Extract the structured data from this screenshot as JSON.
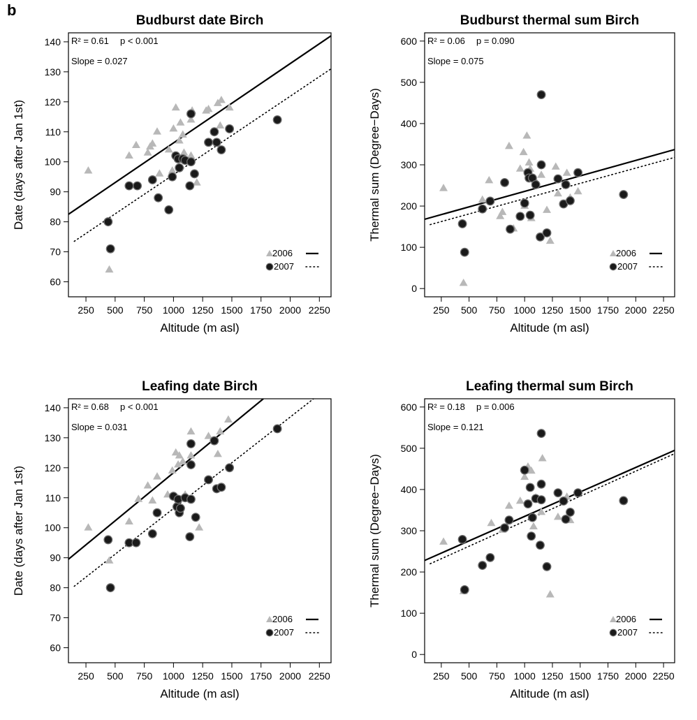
{
  "panel_label": "b",
  "colors": {
    "year2006": "#b8b8b8",
    "year2007": "#1a1a1a",
    "line": "#000000"
  },
  "chart_data": [
    {
      "type": "scatter",
      "title": "Budburst date Birch",
      "xlabel": "Altitude (m asl)",
      "ylabel": "Date (days after Jan 1st)",
      "xlim": [
        100,
        2350
      ],
      "ylim": [
        55,
        143
      ],
      "xticks": [
        250,
        500,
        750,
        1000,
        1250,
        1500,
        1750,
        2000,
        2250
      ],
      "yticks": [
        60,
        70,
        80,
        90,
        100,
        110,
        120,
        130,
        140
      ],
      "stats": {
        "r2": "R² = 0.61",
        "p": "p < 0.001",
        "slope": "Slope = 0.027"
      },
      "legend": {
        "position": "bottom-right",
        "entries": [
          "2006",
          "2007"
        ]
      },
      "series": [
        {
          "name": "2006",
          "marker": "triangle",
          "line": "solid",
          "fit": [
            [
              100,
              82.5
            ],
            [
              2350,
              142
            ]
          ],
          "points": [
            [
              270,
              97
            ],
            [
              450,
              64
            ],
            [
              620,
              102
            ],
            [
              680,
              105.5
            ],
            [
              780,
              103
            ],
            [
              800,
              105
            ],
            [
              820,
              106
            ],
            [
              860,
              110
            ],
            [
              880,
              96
            ],
            [
              960,
              104
            ],
            [
              990,
              97
            ],
            [
              1000,
              111
            ],
            [
              1020,
              118
            ],
            [
              1040,
              101
            ],
            [
              1050,
              107
            ],
            [
              1060,
              113
            ],
            [
              1080,
              109
            ],
            [
              1090,
              103
            ],
            [
              1100,
              101
            ],
            [
              1150,
              102
            ],
            [
              1150,
              114
            ],
            [
              1160,
              117
            ],
            [
              1200,
              93
            ],
            [
              1280,
              117
            ],
            [
              1300,
              117.5
            ],
            [
              1380,
              119.5
            ],
            [
              1400,
              112
            ],
            [
              1410,
              120.5
            ],
            [
              1480,
              118
            ]
          ]
        },
        {
          "name": "2007",
          "marker": "circle",
          "line": "dotted",
          "fit": [
            [
              150,
              73.5
            ],
            [
              2350,
              131
            ]
          ],
          "points": [
            [
              440,
              80
            ],
            [
              460,
              71
            ],
            [
              620,
              92
            ],
            [
              690,
              92
            ],
            [
              820,
              94
            ],
            [
              870,
              88
            ],
            [
              960,
              84
            ],
            [
              990,
              95
            ],
            [
              1020,
              102
            ],
            [
              1040,
              101
            ],
            [
              1050,
              98
            ],
            [
              1080,
              101
            ],
            [
              1100,
              100.5
            ],
            [
              1140,
              92
            ],
            [
              1150,
              100
            ],
            [
              1150,
              116
            ],
            [
              1180,
              96
            ],
            [
              1300,
              106.5
            ],
            [
              1350,
              110
            ],
            [
              1370,
              106.5
            ],
            [
              1410,
              104
            ],
            [
              1480,
              111
            ],
            [
              1890,
              114
            ]
          ]
        }
      ]
    },
    {
      "type": "scatter",
      "title": "Budburst thermal sum Birch",
      "xlabel": "Altitude (m asl)",
      "ylabel": "Thermal sum (Degree−Days)",
      "xlim": [
        100,
        2350
      ],
      "ylim": [
        -20,
        620
      ],
      "xticks": [
        250,
        500,
        750,
        1000,
        1250,
        1500,
        1750,
        2000,
        2250
      ],
      "yticks": [
        0,
        100,
        200,
        300,
        400,
        500,
        600
      ],
      "stats": {
        "r2": "R² = 0.06",
        "p": "p = 0.090",
        "slope": "Slope = 0.075"
      },
      "legend": {
        "position": "bottom-right",
        "entries": [
          "2006",
          "2007"
        ]
      },
      "series": [
        {
          "name": "2006",
          "marker": "triangle",
          "line": "solid",
          "fit": [
            [
              100,
              168
            ],
            [
              2350,
              337
            ]
          ],
          "points": [
            [
              270,
              243
            ],
            [
              450,
              13
            ],
            [
              620,
              215
            ],
            [
              680,
              262
            ],
            [
              780,
              175
            ],
            [
              800,
              185
            ],
            [
              860,
              345
            ],
            [
              900,
              145
            ],
            [
              960,
              290
            ],
            [
              990,
              330
            ],
            [
              1000,
              200
            ],
            [
              1020,
              370
            ],
            [
              1040,
              305
            ],
            [
              1050,
              290
            ],
            [
              1060,
              170
            ],
            [
              1100,
              260
            ],
            [
              1150,
              275
            ],
            [
              1200,
              190
            ],
            [
              1230,
              115
            ],
            [
              1280,
              295
            ],
            [
              1300,
              230
            ],
            [
              1380,
              280
            ],
            [
              1410,
              220
            ],
            [
              1480,
              235
            ]
          ]
        },
        {
          "name": "2007",
          "marker": "circle",
          "line": "dotted",
          "fit": [
            [
              150,
              155
            ],
            [
              2350,
              318
            ]
          ],
          "points": [
            [
              440,
              157
            ],
            [
              460,
              88
            ],
            [
              620,
              193
            ],
            [
              690,
              212
            ],
            [
              820,
              257
            ],
            [
              870,
              144
            ],
            [
              960,
              175
            ],
            [
              1000,
              207
            ],
            [
              1030,
              281
            ],
            [
              1040,
              268
            ],
            [
              1050,
              178
            ],
            [
              1070,
              268
            ],
            [
              1100,
              252
            ],
            [
              1140,
              125
            ],
            [
              1150,
              300
            ],
            [
              1150,
              470
            ],
            [
              1200,
              135
            ],
            [
              1300,
              266
            ],
            [
              1350,
              205
            ],
            [
              1370,
              252
            ],
            [
              1410,
              213
            ],
            [
              1480,
              281
            ],
            [
              1890,
              228
            ]
          ]
        }
      ]
    },
    {
      "type": "scatter",
      "title": "Leafing date Birch",
      "xlabel": "Altitude (m asl)",
      "ylabel": "Date (days after Jan 1st)",
      "xlim": [
        100,
        2350
      ],
      "ylim": [
        55,
        143
      ],
      "xticks": [
        250,
        500,
        750,
        1000,
        1250,
        1500,
        1750,
        2000,
        2250
      ],
      "yticks": [
        60,
        70,
        80,
        90,
        100,
        110,
        120,
        130,
        140
      ],
      "stats": {
        "r2": "R² = 0.68",
        "p": "p < 0.001",
        "slope": "Slope = 0.031"
      },
      "legend": {
        "position": "bottom-right",
        "entries": [
          "2006",
          "2007"
        ]
      },
      "series": [
        {
          "name": "2006",
          "marker": "triangle",
          "line": "solid",
          "fit": [
            [
              100,
              89.5
            ],
            [
              1770,
              143
            ]
          ],
          "points": [
            [
              270,
              100
            ],
            [
              450,
              89
            ],
            [
              620,
              102
            ],
            [
              700,
              109.5
            ],
            [
              780,
              114
            ],
            [
              820,
              109
            ],
            [
              860,
              117
            ],
            [
              950,
              111
            ],
            [
              990,
              119
            ],
            [
              1020,
              125
            ],
            [
              1040,
              121
            ],
            [
              1050,
              124
            ],
            [
              1080,
              122
            ],
            [
              1100,
              111
            ],
            [
              1150,
              124
            ],
            [
              1150,
              132
            ],
            [
              1220,
              100
            ],
            [
              1300,
              130.5
            ],
            [
              1380,
              124.5
            ],
            [
              1400,
              132
            ],
            [
              1470,
              136
            ]
          ]
        },
        {
          "name": "2007",
          "marker": "circle",
          "line": "dotted",
          "fit": [
            [
              150,
              80.5
            ],
            [
              2200,
              143
            ]
          ],
          "points": [
            [
              440,
              96
            ],
            [
              460,
              80
            ],
            [
              620,
              95
            ],
            [
              680,
              95
            ],
            [
              820,
              98
            ],
            [
              860,
              105
            ],
            [
              1000,
              110.5
            ],
            [
              1030,
              107
            ],
            [
              1040,
              109.5
            ],
            [
              1050,
              105
            ],
            [
              1060,
              106.5
            ],
            [
              1100,
              110
            ],
            [
              1140,
              97
            ],
            [
              1150,
              109.5
            ],
            [
              1150,
              121
            ],
            [
              1150,
              128
            ],
            [
              1190,
              103.5
            ],
            [
              1300,
              116
            ],
            [
              1350,
              129
            ],
            [
              1370,
              113
            ],
            [
              1410,
              113.5
            ],
            [
              1480,
              120
            ],
            [
              1890,
              133
            ]
          ]
        }
      ]
    },
    {
      "type": "scatter",
      "title": "Leafing thermal sum Birch",
      "xlabel": "Altitude (m asl)",
      "ylabel": "Thermal sum (Degree−Days)",
      "xlim": [
        100,
        2350
      ],
      "ylim": [
        -20,
        620
      ],
      "xticks": [
        250,
        500,
        750,
        1000,
        1250,
        1500,
        1750,
        2000,
        2250
      ],
      "yticks": [
        0,
        100,
        200,
        300,
        400,
        500,
        600
      ],
      "stats": {
        "r2": "R² = 0.18",
        "p": "p = 0.006",
        "slope": "Slope = 0.121"
      },
      "legend": {
        "position": "bottom-right",
        "entries": [
          "2006",
          "2007"
        ]
      },
      "series": [
        {
          "name": "2006",
          "marker": "triangle",
          "line": "solid",
          "fit": [
            [
              100,
              228
            ],
            [
              2350,
              495
            ]
          ],
          "points": [
            [
              270,
              273
            ],
            [
              450,
              153
            ],
            [
              700,
              318
            ],
            [
              800,
              302
            ],
            [
              860,
              360
            ],
            [
              960,
              372
            ],
            [
              1000,
              430
            ],
            [
              1030,
              455
            ],
            [
              1060,
              445
            ],
            [
              1080,
              310
            ],
            [
              1100,
              380
            ],
            [
              1150,
              345
            ],
            [
              1160,
              475
            ],
            [
              1230,
              145
            ],
            [
              1300,
              333
            ],
            [
              1380,
              382
            ],
            [
              1410,
              325
            ]
          ]
        },
        {
          "name": "2007",
          "marker": "circle",
          "line": "dotted",
          "fit": [
            [
              150,
              220
            ],
            [
              2350,
              487
            ]
          ],
          "points": [
            [
              440,
              279
            ],
            [
              460,
              157
            ],
            [
              620,
              216
            ],
            [
              690,
              235
            ],
            [
              820,
              307
            ],
            [
              860,
              326
            ],
            [
              1000,
              447
            ],
            [
              1030,
              365
            ],
            [
              1050,
              405
            ],
            [
              1060,
              287
            ],
            [
              1070,
              332
            ],
            [
              1100,
              378
            ],
            [
              1140,
              265
            ],
            [
              1150,
              375
            ],
            [
              1150,
              413
            ],
            [
              1150,
              536
            ],
            [
              1200,
              213
            ],
            [
              1300,
              392
            ],
            [
              1350,
              372
            ],
            [
              1370,
              328
            ],
            [
              1410,
              345
            ],
            [
              1480,
              392
            ],
            [
              1890,
              373
            ]
          ]
        }
      ]
    }
  ]
}
